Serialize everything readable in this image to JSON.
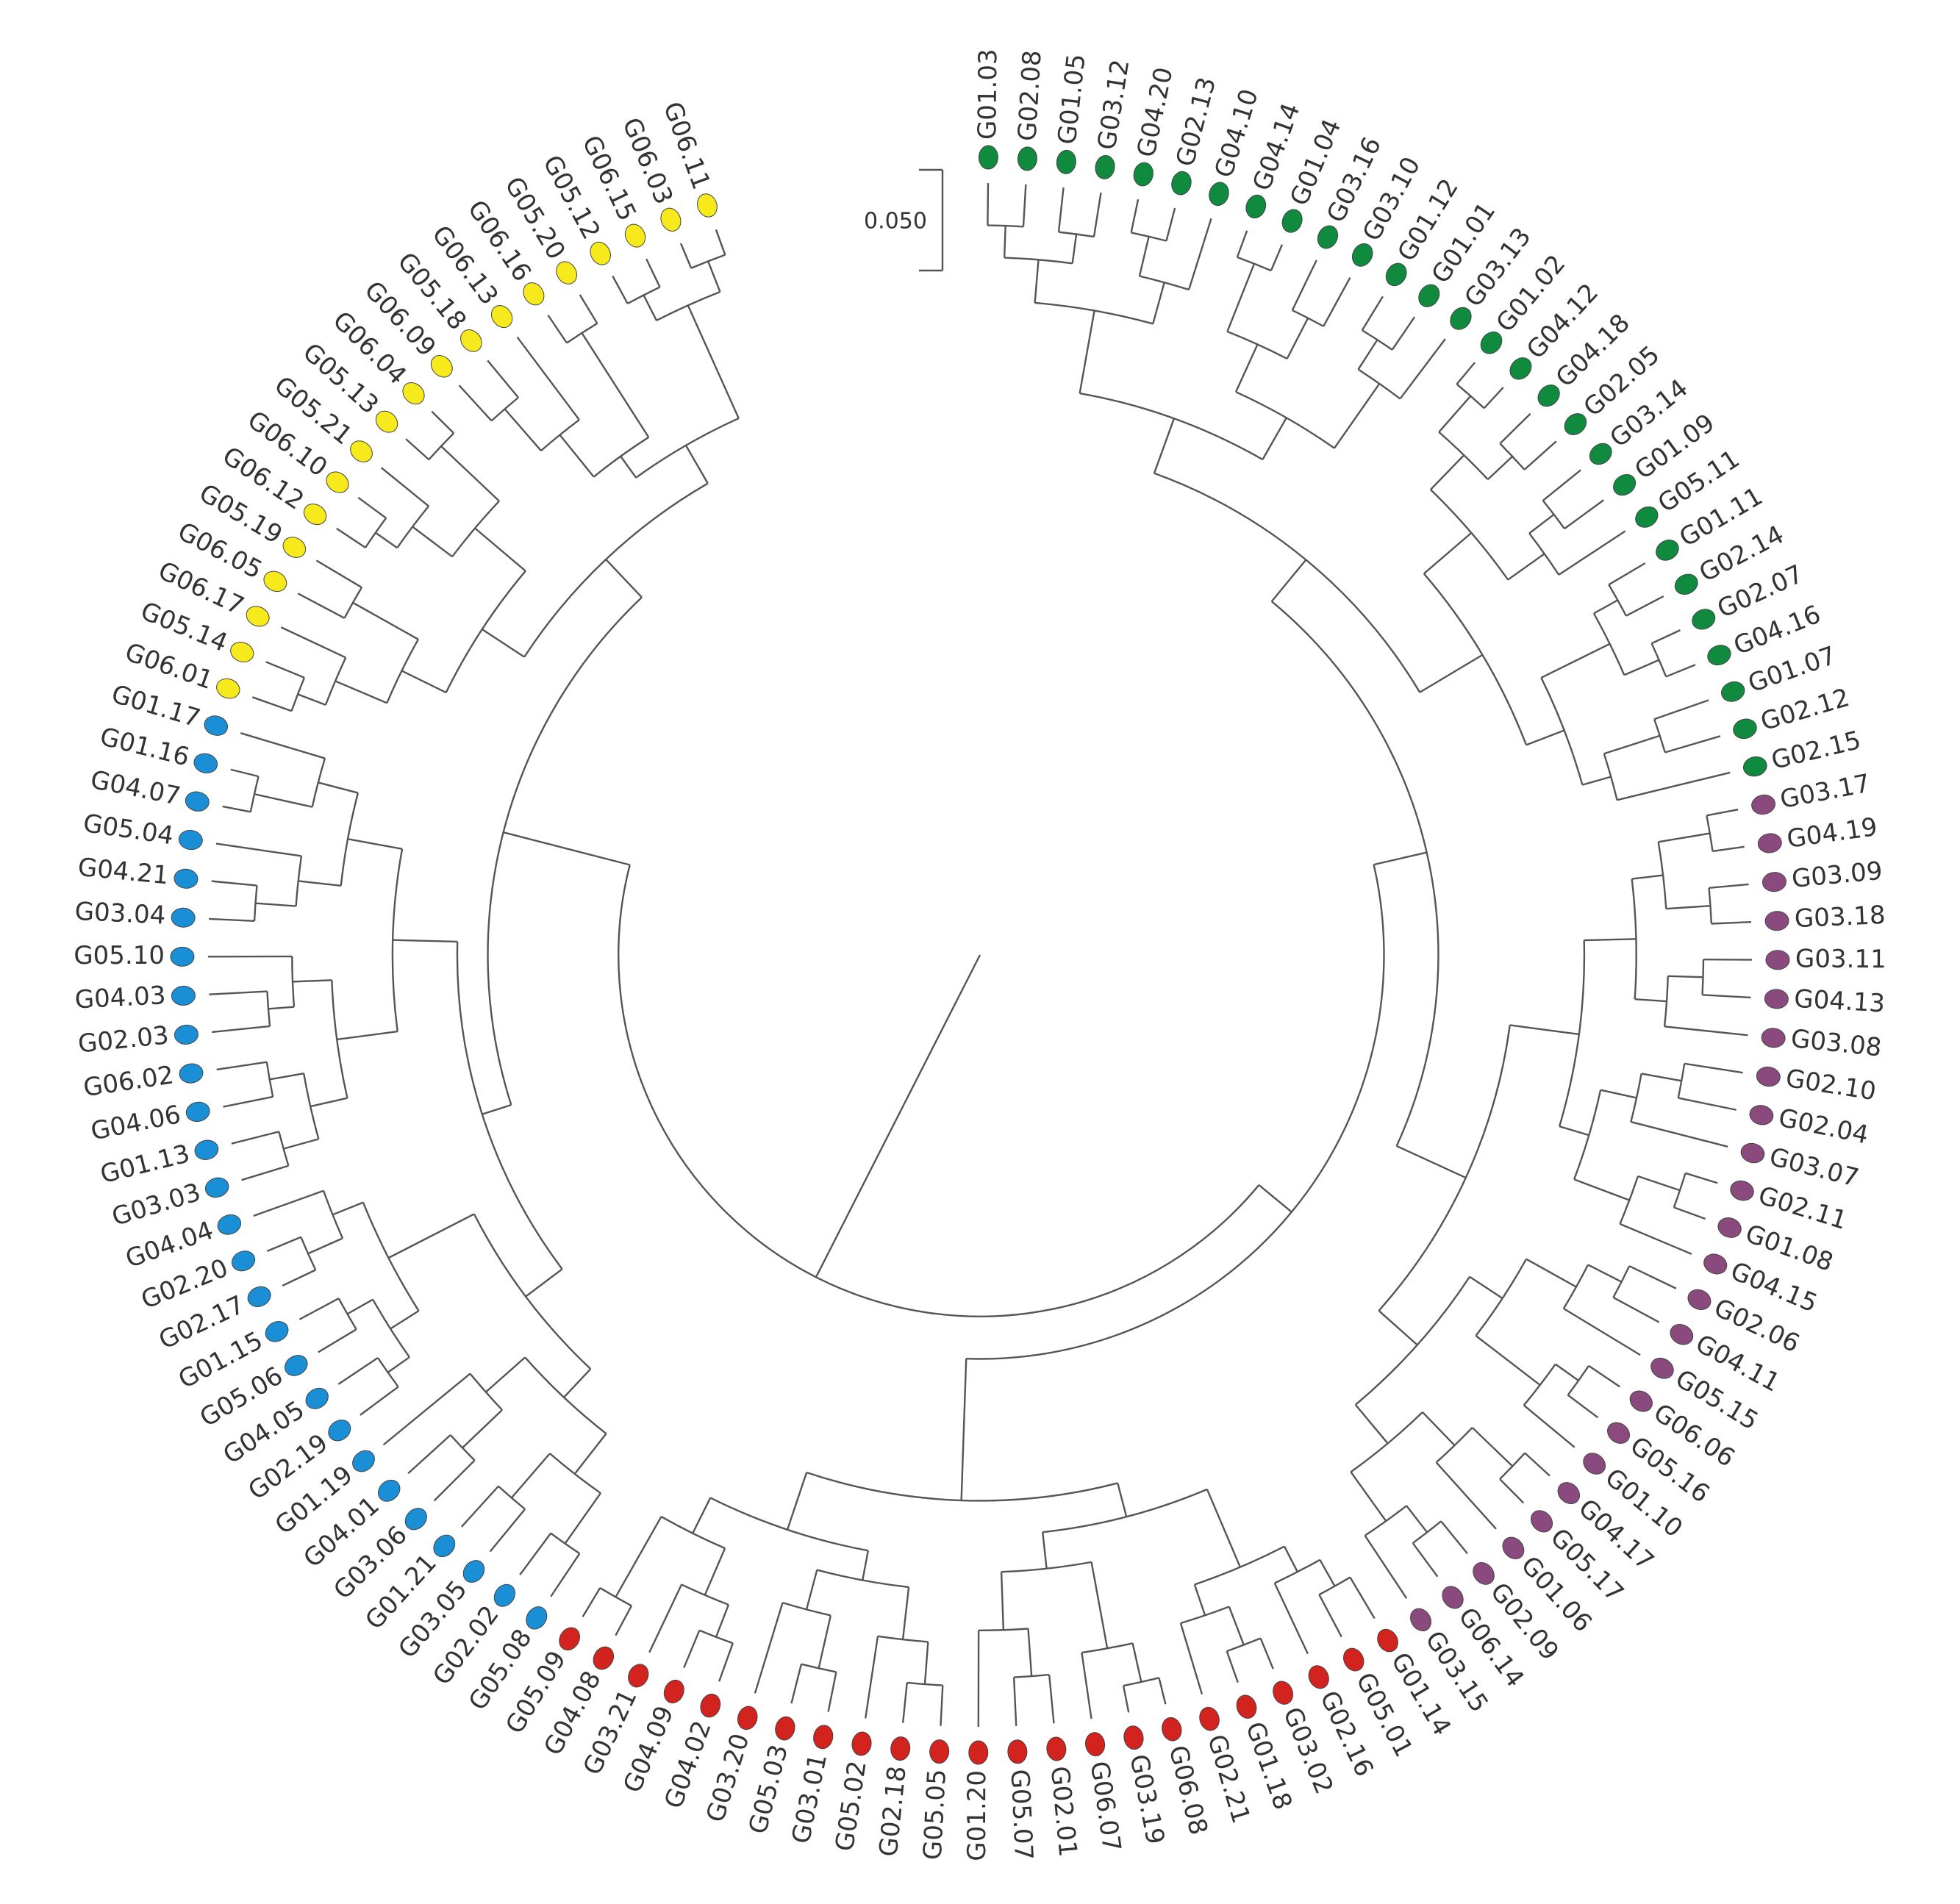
{
  "scale_bar": "0.050",
  "clades": [
    {
      "color": "#0f8a3f",
      "leaves": [
        "G01.03",
        "G02.08",
        "G01.05",
        "G03.12",
        "G04.20",
        "G02.13",
        "G04.10",
        "G04.14",
        "G01.04",
        "G03.16",
        "G03.10",
        "G01.12",
        "G01.01",
        "G03.13",
        "G01.02",
        "G04.12",
        "G04.18",
        "G02.05",
        "G03.14",
        "G01.09",
        "G05.11",
        "G01.11",
        "G02.14",
        "G02.07",
        "G04.16",
        "G01.07",
        "G02.12",
        "G02.15"
      ]
    },
    {
      "color": "#8b4a7d",
      "leaves": [
        "G03.17",
        "G04.19",
        "G03.09",
        "G03.18",
        "G03.11",
        "G04.13",
        "G03.08",
        "G02.10",
        "G02.04",
        "G03.07",
        "G02.11",
        "G01.08",
        "G04.15",
        "G02.06",
        "G04.11",
        "G05.15",
        "G06.06",
        "G05.16",
        "G01.10",
        "G04.17",
        "G05.17",
        "G01.06",
        "G02.09",
        "G06.14",
        "G03.15"
      ]
    },
    {
      "color": "#d2231f",
      "leaves": [
        "G01.14",
        "G05.01",
        "G02.16",
        "G03.02",
        "G01.18",
        "G02.21",
        "G06.08",
        "G03.19",
        "G06.07",
        "G02.01",
        "G05.07",
        "G01.20",
        "G05.05",
        "G02.18",
        "G05.02",
        "G03.01",
        "G05.03",
        "G03.20",
        "G04.02",
        "G04.09",
        "G03.21",
        "G04.08",
        "G05.09"
      ]
    },
    {
      "color": "#1b8fd6",
      "leaves": [
        "G05.08",
        "G02.02",
        "G03.05",
        "G01.21",
        "G03.06",
        "G04.01",
        "G01.19",
        "G02.19",
        "G04.05",
        "G05.06",
        "G01.15",
        "G02.17",
        "G02.20",
        "G04.04",
        "G03.03",
        "G01.13",
        "G04.06",
        "G06.02",
        "G02.03",
        "G04.03",
        "G05.10",
        "G03.04",
        "G04.21",
        "G05.04",
        "G04.07",
        "G01.16",
        "G01.17"
      ]
    },
    {
      "color": "#f6e91c",
      "leaves": [
        "G06.01",
        "G05.14",
        "G06.17",
        "G06.05",
        "G05.19",
        "G06.12",
        "G06.10",
        "G05.21",
        "G05.13",
        "G06.04",
        "G06.09",
        "G05.18",
        "G06.13",
        "G06.16",
        "G05.20",
        "G05.12",
        "G06.15",
        "G06.03",
        "G06.11"
      ]
    }
  ]
}
